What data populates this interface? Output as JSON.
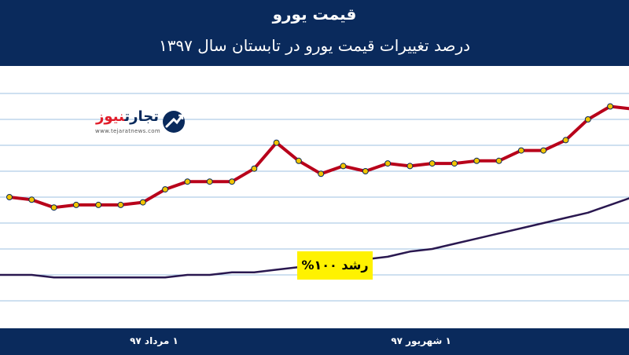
{
  "header": {
    "title": "قیمت یورو",
    "subtitle": "درصد تغییرات قیمت یورو در تابستان سال ۱۳۹۷"
  },
  "logo": {
    "name_part1": "تجارت",
    "name_part2": "نیوز",
    "url": "www.tejaratnews.com"
  },
  "annotation": {
    "growth_label": "رشد ۱۰۰%"
  },
  "colors": {
    "header_bg": "#0a2a5c",
    "series_line": "#b8001a",
    "marker_fill": "#f2c400",
    "marker_stroke": "#0a2a5c",
    "trend_line": "#2a1850",
    "grid": "#9ec2e2",
    "label_bg": "#fff200"
  },
  "chart_data": {
    "type": "line",
    "title": "قیمت یورو",
    "subtitle": "درصد تغییرات قیمت یورو در تابستان سال ۱۳۹۷",
    "xlabel": "",
    "ylabel": "",
    "x_tick_labels": [
      {
        "label": "۱ مرداد ۹۷",
        "index": 6.5
      },
      {
        "label": "۱ شهریور ۹۷",
        "index": 18.5
      }
    ],
    "ylim": [
      0,
      10
    ],
    "grid": true,
    "legend": "none",
    "series": [
      {
        "values": [
          5.0,
          4.9,
          4.6,
          4.7,
          4.7,
          4.7,
          4.8,
          5.3,
          5.6,
          5.6,
          5.6,
          6.1,
          7.1,
          6.4,
          5.9,
          6.2,
          6.0,
          6.3,
          6.2,
          6.3,
          6.3,
          6.4,
          6.4,
          6.8,
          6.8,
          7.2,
          8.0,
          8.5,
          8.4,
          8.0,
          8.6,
          8.5
        ]
      }
    ],
    "trend": {
      "type": "smooth-curve",
      "values": [
        2.0,
        2.0,
        1.9,
        1.9,
        1.9,
        1.9,
        1.9,
        1.9,
        2.0,
        2.0,
        2.1,
        2.1,
        2.2,
        2.3,
        2.4,
        2.5,
        2.6,
        2.7,
        2.9,
        3.0,
        3.2,
        3.4,
        3.6,
        3.8,
        4.0,
        4.2,
        4.4,
        4.7,
        5.0,
        5.3,
        5.6,
        5.8
      ]
    }
  }
}
